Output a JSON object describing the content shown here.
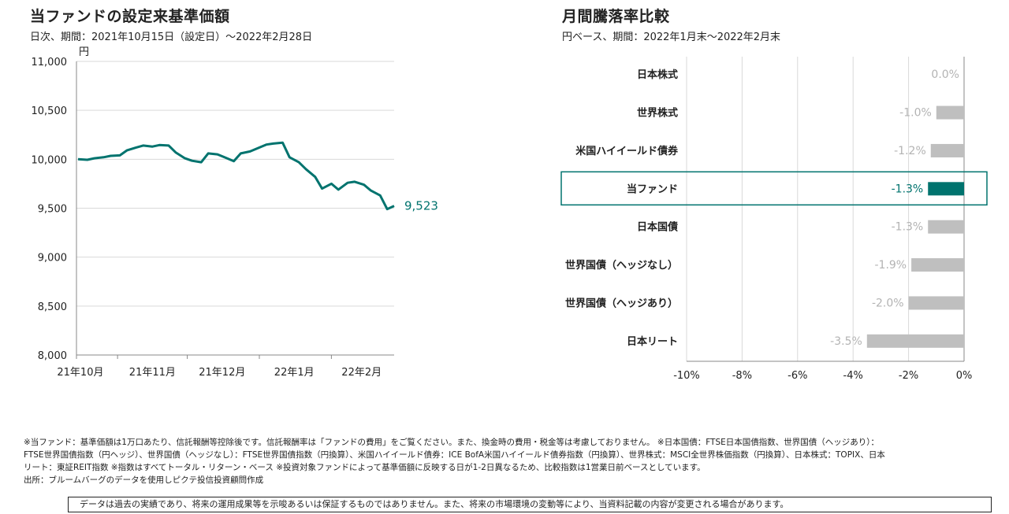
{
  "left_panel": {
    "title": "当ファンドの設定来基準価額",
    "subtitle": "日次、期間：2021年10月15日（設定日）～2022年2月28日"
  },
  "right_panel": {
    "title": "月間騰落率比較",
    "subtitle": "円ベース、期間：2022年1月末～2022年2月末"
  },
  "chart_data": [
    {
      "type": "line",
      "ylabel": "円",
      "ylim": [
        8000,
        11000
      ],
      "yticks": [
        "11,000",
        "10,500",
        "10,000",
        "9,500",
        "9,000",
        "8,500",
        "8,000"
      ],
      "ytick_values": [
        11000,
        10500,
        10000,
        9500,
        9000,
        8500,
        8000
      ],
      "xtick_labels": [
        "21年10月",
        "21年11月",
        "21年12月",
        "22年1月",
        "22年2月"
      ],
      "end_label": "9,523",
      "color": "#00736e",
      "series": [
        {
          "x": [
            "2021-10-15",
            "2021-10-19",
            "2021-10-22",
            "2021-10-26",
            "2021-10-29",
            "2021-11-02",
            "2021-11-05",
            "2021-11-09",
            "2021-11-12",
            "2021-11-16",
            "2021-11-19",
            "2021-11-23",
            "2021-11-26",
            "2021-11-30",
            "2021-12-03",
            "2021-12-07",
            "2021-12-10",
            "2021-12-14",
            "2021-12-17",
            "2021-12-21",
            "2021-12-24",
            "2021-12-28",
            "2022-01-04",
            "2022-01-07",
            "2022-01-11",
            "2022-01-14",
            "2022-01-18",
            "2022-01-21",
            "2022-01-25",
            "2022-01-28",
            "2022-02-01",
            "2022-02-04",
            "2022-02-08",
            "2022-02-11",
            "2022-02-15",
            "2022-02-18",
            "2022-02-22",
            "2022-02-25",
            "2022-02-28"
          ],
          "y": [
            10000,
            9995,
            10010,
            10020,
            10035,
            10040,
            10090,
            10120,
            10140,
            10130,
            10145,
            10140,
            10070,
            10010,
            9985,
            9970,
            10060,
            10050,
            10020,
            9980,
            10060,
            10080,
            10150,
            10160,
            10170,
            10020,
            9970,
            9900,
            9820,
            9700,
            9750,
            9690,
            9760,
            9770,
            9740,
            9680,
            9630,
            9490,
            9523
          ]
        }
      ]
    },
    {
      "type": "bar",
      "orientation": "horizontal",
      "categories": [
        "日本株式",
        "世界株式",
        "米国ハイイールド債券",
        "当ファンド",
        "日本国債",
        "世界国債（ヘッジなし）",
        "世界国債（ヘッジあり）",
        "日本リート"
      ],
      "values": [
        0.0,
        -1.0,
        -1.2,
        -1.3,
        -1.3,
        -1.9,
        -2.0,
        -3.5
      ],
      "value_labels": [
        "0.0%",
        "-1.0%",
        "-1.2%",
        "-1.3%",
        "-1.3%",
        "-1.9%",
        "-2.0%",
        "-3.5%"
      ],
      "highlight": "当ファンド",
      "xlim": [
        -10,
        0
      ],
      "xticks": [
        "-10%",
        "-8%",
        "-6%",
        "-4%",
        "-2%",
        "0%"
      ],
      "xtick_values": [
        -10,
        -8,
        -6,
        -4,
        -2,
        0
      ],
      "colors": {
        "highlight": "#00736e",
        "normal": "#bfbfbf"
      }
    }
  ],
  "notes": [
    "※当ファンド：基準価額は1万口あたり、信託報酬等控除後です。信託報酬率は「ファンドの費用」をご覧ください。また、換金時の費用・税金等は考慮しておりません。 ※日本国債：FTSE日本国債指数、世界国債（ヘッジあり）：",
    "FTSE世界国債指数（円ヘッジ）、世界国債（ヘッジなし）：FTSE世界国債指数（円換算）、米国ハイイールド債券：ICE BofA米国ハイイールド債券指数（円換算）、世界株式：MSCI全世界株価指数（円換算）、日本株式：TOPIX、日本",
    "リート：東証REIT指数 ※指数はすべてトータル・リターン・ベース ※投資対象ファンドによって基準価額に反映する日が1-2日異なるため、比較指数は1営業日前ベースとしています。",
    "出所：ブルームバーグのデータを使用しピクテ投信投資顧問作成"
  ],
  "disclaimer": "データは過去の実績であり、将来の運用成果等を示唆あるいは保証するものではありません。また、将来の市場環境の変動等により、当資料記載の内容が変更される場合があります。"
}
